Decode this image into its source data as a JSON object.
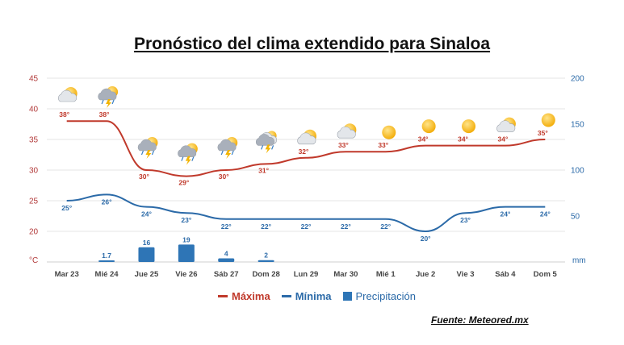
{
  "title": "Pronóstico del clima extendido para Sinaloa",
  "source": "Fuente: Meteored.mx",
  "legend": {
    "max": "Máxima",
    "min": "Mínima",
    "prec": "Precipitación"
  },
  "colors": {
    "max": "#c0392b",
    "min": "#2b6aa8",
    "prec": "#2e75b6",
    "grid": "#e6e6e6"
  },
  "chart_data": {
    "type": "line",
    "categories": [
      "Mar 23",
      "Mié 24",
      "Jue 25",
      "Vie 26",
      "Sáb 27",
      "Dom 28",
      "Lun 29",
      "Mar 30",
      "Mié 1",
      "Jue 2",
      "Vie 3",
      "Sáb 4",
      "Dom 5"
    ],
    "y_left": {
      "label": "°C",
      "ticks": [
        20,
        25,
        30,
        35,
        40,
        45
      ],
      "range": [
        15,
        45
      ]
    },
    "y_right": {
      "label": "mm",
      "ticks": [
        50,
        100,
        150,
        200
      ],
      "range": [
        0,
        200
      ]
    },
    "series": [
      {
        "name": "Máxima",
        "axis": "left",
        "values": [
          38,
          38,
          30,
          29,
          30,
          31,
          32,
          33,
          33,
          34,
          34,
          34,
          35
        ],
        "labels": [
          "38°",
          "38°",
          "30°",
          "29°",
          "30°",
          "31°",
          "32°",
          "33°",
          "33°",
          "34°",
          "34°",
          "34°",
          "35°"
        ]
      },
      {
        "name": "Mínima",
        "axis": "left",
        "values": [
          25,
          26,
          24,
          23,
          22,
          22,
          22,
          22,
          22,
          20,
          23,
          24,
          24
        ],
        "labels": [
          "25°",
          "26°",
          "24°",
          "23°",
          "22°",
          "22°",
          "22°",
          "22°",
          "22°",
          "20°",
          "23°",
          "24°",
          "24°"
        ]
      },
      {
        "name": "Precipitación",
        "axis": "right",
        "type": "bar",
        "values": [
          null,
          1.7,
          16,
          19,
          4,
          2,
          null,
          null,
          null,
          null,
          null,
          null,
          null
        ],
        "labels": [
          "",
          "1.7",
          "16",
          "19",
          "4",
          "2",
          "",
          "",
          "",
          "",
          "",
          "",
          ""
        ]
      }
    ],
    "icons": [
      "sun-cloud-icon",
      "storm-sun-icon",
      "storm-sun-icon",
      "storm-sun-icon",
      "storm-sun-icon",
      "storm-cloud-icon",
      "sun-cloud-icon",
      "sun-cloud-icon",
      "sun-icon",
      "sun-icon",
      "sun-icon",
      "sun-cloud-icon",
      "sun-icon"
    ]
  }
}
